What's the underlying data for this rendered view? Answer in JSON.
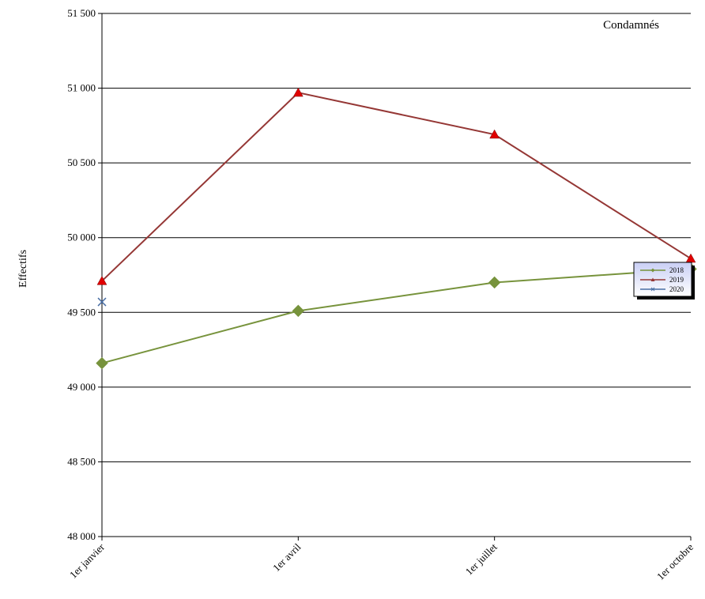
{
  "chart_data": {
    "type": "line",
    "title": "Condamnés",
    "xlabel": "",
    "ylabel": "Effectifs",
    "categories": [
      "1er janvier",
      "1er avril",
      "1er juillet",
      "1er octobre"
    ],
    "ylim": [
      48000,
      51500
    ],
    "yticks": [
      48000,
      48500,
      49000,
      49500,
      50000,
      50500,
      51000,
      51500
    ],
    "ytick_labels": [
      "48 000",
      "48 500",
      "49 000",
      "49 500",
      "50 000",
      "50 500",
      "51 000",
      "51 500"
    ],
    "grid": "horizontal",
    "legend": "right",
    "series": [
      {
        "name": "2018",
        "values": [
          49160,
          49510,
          49700,
          49790
        ],
        "color": "#77933C",
        "marker": "diamond"
      },
      {
        "name": "2019",
        "values": [
          49710,
          50970,
          50690,
          49860
        ],
        "color": "#953735",
        "marker": "triangle",
        "marker_color": "#E00000"
      },
      {
        "name": "2020",
        "values": [
          49570,
          null,
          null,
          null
        ],
        "color": "#4A6FA5",
        "marker": "x"
      }
    ]
  }
}
